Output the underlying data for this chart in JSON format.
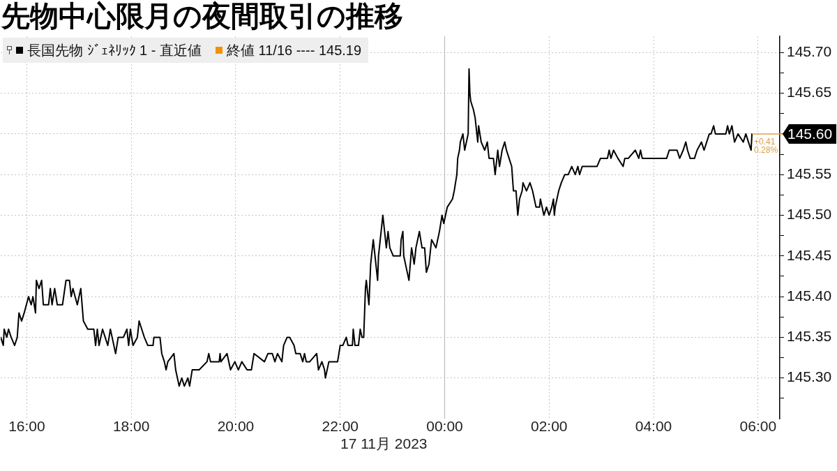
{
  "chart_data": {
    "type": "line",
    "title": "先物中心限月の夜間取引の推移",
    "x": [
      "2023-11-16T15:30",
      "2023-11-16T15:33",
      "2023-11-16T15:34",
      "2023-11-16T15:37",
      "2023-11-16T15:39",
      "2023-11-16T15:42",
      "2023-11-16T15:46",
      "2023-11-16T15:49",
      "2023-11-16T15:51",
      "2023-11-16T15:54",
      "2023-11-16T15:57",
      "2023-11-16T16:02",
      "2023-11-16T16:05",
      "2023-11-16T16:07",
      "2023-11-16T16:10",
      "2023-11-16T16:11",
      "2023-11-16T16:14",
      "2023-11-16T16:17",
      "2023-11-16T16:19",
      "2023-11-16T16:25",
      "2023-11-16T16:27",
      "2023-11-16T16:29",
      "2023-11-16T16:32",
      "2023-11-16T16:35",
      "2023-11-16T16:41",
      "2023-11-16T16:45",
      "2023-11-16T16:49",
      "2023-11-16T16:51",
      "2023-11-16T16:53",
      "2023-11-16T16:58",
      "2023-11-16T17:02",
      "2023-11-16T17:05",
      "2023-11-16T17:10",
      "2023-11-16T17:17",
      "2023-11-16T17:19",
      "2023-11-16T17:21",
      "2023-11-16T17:23",
      "2023-11-16T17:27",
      "2023-11-16T17:30",
      "2023-11-16T17:33",
      "2023-11-16T17:36",
      "2023-11-16T17:38",
      "2023-11-16T17:42",
      "2023-11-16T17:45",
      "2023-11-16T17:51",
      "2023-11-16T17:55",
      "2023-11-16T17:57",
      "2023-11-16T17:59",
      "2023-11-16T18:02",
      "2023-11-16T18:07",
      "2023-11-16T18:09",
      "2023-11-16T18:12",
      "2023-11-16T18:15",
      "2023-11-16T18:19",
      "2023-11-16T18:25",
      "2023-11-16T18:26",
      "2023-11-16T18:33",
      "2023-11-16T18:35",
      "2023-11-16T18:38",
      "2023-11-16T18:40",
      "2023-11-16T18:42",
      "2023-11-16T18:49",
      "2023-11-16T18:51",
      "2023-11-16T18:55",
      "2023-11-16T18:58",
      "2023-11-16T19:01",
      "2023-11-16T19:05",
      "2023-11-16T19:07",
      "2023-11-16T19:10",
      "2023-11-16T19:18",
      "2023-11-16T19:27",
      "2023-11-16T19:29",
      "2023-11-16T19:31",
      "2023-11-16T19:41",
      "2023-11-16T19:42",
      "2023-11-16T19:43",
      "2023-11-16T19:50",
      "2023-11-16T19:54",
      "2023-11-16T19:59",
      "2023-11-16T20:03",
      "2023-11-16T20:07",
      "2023-11-16T20:13",
      "2023-11-16T20:18",
      "2023-11-16T20:21",
      "2023-11-16T20:33",
      "2023-11-16T20:37",
      "2023-11-16T20:42",
      "2023-11-16T20:45",
      "2023-11-16T20:48",
      "2023-11-16T20:53",
      "2023-11-16T20:55",
      "2023-11-16T20:59",
      "2023-11-16T21:02",
      "2023-11-16T21:07",
      "2023-11-16T21:09",
      "2023-11-16T21:14",
      "2023-11-16T21:17",
      "2023-11-16T21:19",
      "2023-11-16T21:21",
      "2023-11-16T21:25",
      "2023-11-16T21:33",
      "2023-11-16T21:35",
      "2023-11-16T21:39",
      "2023-11-16T21:42",
      "2023-11-16T21:43",
      "2023-11-16T21:47",
      "2023-11-16T21:57",
      "2023-11-16T22:00",
      "2023-11-16T22:03",
      "2023-11-16T22:07",
      "2023-11-16T22:09",
      "2023-11-16T22:14",
      "2023-11-16T22:15",
      "2023-11-16T22:17",
      "2023-11-16T22:21",
      "2023-11-16T22:23",
      "2023-11-16T22:25",
      "2023-11-16T22:27",
      "2023-11-16T22:29",
      "2023-11-16T22:30",
      "2023-11-16T22:33",
      "2023-11-16T22:35",
      "2023-11-16T22:38",
      "2023-11-16T22:40",
      "2023-11-16T22:43",
      "2023-11-16T22:44",
      "2023-11-16T22:47",
      "2023-11-16T22:49",
      "2023-11-16T22:51",
      "2023-11-16T22:53",
      "2023-11-16T22:55",
      "2023-11-16T22:57",
      "2023-11-16T23:01",
      "2023-11-16T23:09",
      "2023-11-16T23:10",
      "2023-11-16T23:12",
      "2023-11-16T23:13",
      "2023-11-16T23:17",
      "2023-11-16T23:19",
      "2023-11-16T23:22",
      "2023-11-16T23:25",
      "2023-11-16T23:27",
      "2023-11-16T23:31",
      "2023-11-16T23:34",
      "2023-11-16T23:37",
      "2023-11-16T23:39",
      "2023-11-16T23:42",
      "2023-11-16T23:45",
      "2023-11-16T23:50",
      "2023-11-16T23:54",
      "2023-11-16T23:57",
      "2023-11-16T23:59",
      "2023-11-17T00:03",
      "2023-11-17T00:09",
      "2023-11-17T00:11",
      "2023-11-17T00:14",
      "2023-11-17T00:15",
      "2023-11-17T00:17",
      "2023-11-17T00:18",
      "2023-11-17T00:21",
      "2023-11-17T00:23",
      "2023-11-17T00:25",
      "2023-11-17T00:27",
      "2023-11-17T00:28",
      "2023-11-17T00:29",
      "2023-11-17T00:30",
      "2023-11-17T00:33",
      "2023-11-17T00:35",
      "2023-11-17T00:37",
      "2023-11-17T00:38",
      "2023-11-17T00:39",
      "2023-11-17T00:42",
      "2023-11-17T00:46",
      "2023-11-17T00:49",
      "2023-11-17T00:50",
      "2023-11-17T00:51",
      "2023-11-17T00:56",
      "2023-11-17T00:58",
      "2023-11-17T01:01",
      "2023-11-17T01:03",
      "2023-11-17T01:06",
      "2023-11-17T01:09",
      "2023-11-17T01:11",
      "2023-11-17T01:14",
      "2023-11-17T01:17",
      "2023-11-17T01:19",
      "2023-11-17T01:22",
      "2023-11-17T01:24",
      "2023-11-17T01:26",
      "2023-11-17T01:29",
      "2023-11-17T01:30",
      "2023-11-17T01:34",
      "2023-11-17T01:38",
      "2023-11-17T01:41",
      "2023-11-17T01:43",
      "2023-11-17T01:45",
      "2023-11-17T01:49",
      "2023-11-17T01:50",
      "2023-11-17T01:54",
      "2023-11-17T01:57",
      "2023-11-17T02:00",
      "2023-11-17T02:03",
      "2023-11-17T02:05",
      "2023-11-17T02:06",
      "2023-11-17T02:07",
      "2023-11-17T02:11",
      "2023-11-17T02:14",
      "2023-11-17T02:18",
      "2023-11-17T02:22",
      "2023-11-17T02:26",
      "2023-11-17T02:30",
      "2023-11-17T02:33",
      "2023-11-17T02:35",
      "2023-11-17T02:38",
      "2023-11-17T02:55",
      "2023-11-17T02:59",
      "2023-11-17T03:07",
      "2023-11-17T03:09",
      "2023-11-17T03:11",
      "2023-11-17T03:14",
      "2023-11-17T03:19",
      "2023-11-17T03:25",
      "2023-11-17T03:27",
      "2023-11-17T03:31",
      "2023-11-17T03:39",
      "2023-11-17T03:43",
      "2023-11-17T03:45",
      "2023-11-17T03:47",
      "2023-11-17T04:15",
      "2023-11-17T04:18",
      "2023-11-17T04:27",
      "2023-11-17T04:30",
      "2023-11-17T04:34",
      "2023-11-17T04:37",
      "2023-11-17T04:39",
      "2023-11-17T04:42",
      "2023-11-17T04:47",
      "2023-11-17T04:50",
      "2023-11-17T04:55",
      "2023-11-17T04:58",
      "2023-11-17T05:01",
      "2023-11-17T05:04",
      "2023-11-17T05:06",
      "2023-11-17T05:09",
      "2023-11-17T05:11",
      "2023-11-17T05:23",
      "2023-11-17T05:25",
      "2023-11-17T05:27",
      "2023-11-17T05:30",
      "2023-11-17T05:33",
      "2023-11-17T05:37",
      "2023-11-17T05:43",
      "2023-11-17T05:46",
      "2023-11-17T05:49",
      "2023-11-17T05:52",
      "2023-11-17T05:53"
    ],
    "series": [
      {
        "name": "長国先物 ｼﾞｪﾈﾘｯｸ 1 - 直近値",
        "color": "#000000",
        "values": [
          145.35,
          145.34,
          145.36,
          145.35,
          145.36,
          145.35,
          145.34,
          145.35,
          145.38,
          145.37,
          145.38,
          145.4,
          145.39,
          145.4,
          145.38,
          145.42,
          145.41,
          145.42,
          145.39,
          145.39,
          145.41,
          145.39,
          145.41,
          145.39,
          145.39,
          145.42,
          145.42,
          145.4,
          145.41,
          145.39,
          145.41,
          145.37,
          145.36,
          145.36,
          145.34,
          145.36,
          145.34,
          145.36,
          145.35,
          145.34,
          145.36,
          145.35,
          145.33,
          145.35,
          145.35,
          145.36,
          145.34,
          145.36,
          145.34,
          145.35,
          145.37,
          145.36,
          145.35,
          145.34,
          145.34,
          145.35,
          145.35,
          145.33,
          145.32,
          145.31,
          145.32,
          145.33,
          145.31,
          145.29,
          145.3,
          145.29,
          145.3,
          145.29,
          145.31,
          145.31,
          145.32,
          145.33,
          145.32,
          145.32,
          145.33,
          145.32,
          145.33,
          145.31,
          145.32,
          145.31,
          145.32,
          145.31,
          145.31,
          145.33,
          145.32,
          145.33,
          145.33,
          145.32,
          145.33,
          145.32,
          145.34,
          145.35,
          145.35,
          145.34,
          145.33,
          145.33,
          145.32,
          145.33,
          145.32,
          145.32,
          145.33,
          145.31,
          145.32,
          145.31,
          145.3,
          145.32,
          145.32,
          145.34,
          145.34,
          145.35,
          145.34,
          145.34,
          145.36,
          145.34,
          145.34,
          145.36,
          145.35,
          145.35,
          145.41,
          145.42,
          145.39,
          145.44,
          145.47,
          145.45,
          145.42,
          145.45,
          145.48,
          145.5,
          145.48,
          145.46,
          145.48,
          145.46,
          145.45,
          145.45,
          145.47,
          145.48,
          145.45,
          145.43,
          145.42,
          145.46,
          145.44,
          145.46,
          145.48,
          145.46,
          145.46,
          145.43,
          145.44,
          145.47,
          145.46,
          145.48,
          145.5,
          145.49,
          145.51,
          145.52,
          145.53,
          145.55,
          145.57,
          145.58,
          145.59,
          145.6,
          145.58,
          145.59,
          145.6,
          145.68,
          145.65,
          145.64,
          145.63,
          145.62,
          145.6,
          145.59,
          145.61,
          145.59,
          145.58,
          145.59,
          145.58,
          145.57,
          145.57,
          145.55,
          145.58,
          145.56,
          145.58,
          145.59,
          145.58,
          145.57,
          145.56,
          145.53,
          145.53,
          145.5,
          145.52,
          145.53,
          145.54,
          145.53,
          145.54,
          145.53,
          145.52,
          145.51,
          145.51,
          145.52,
          145.5,
          145.51,
          145.5,
          145.51,
          145.52,
          145.5,
          145.51,
          145.53,
          145.54,
          145.55,
          145.55,
          145.56,
          145.55,
          145.56,
          145.55,
          145.56,
          145.56,
          145.57,
          145.57,
          145.58,
          145.57,
          145.58,
          145.57,
          145.56,
          145.57,
          145.57,
          145.58,
          145.57,
          145.58,
          145.57,
          145.57,
          145.58,
          145.58,
          145.57,
          145.58,
          145.59,
          145.58,
          145.57,
          145.57,
          145.58,
          145.59,
          145.58,
          145.59,
          145.6,
          145.6,
          145.61,
          145.6,
          145.6,
          145.61,
          145.6,
          145.61,
          145.59,
          145.6,
          145.59,
          145.6,
          145.59,
          145.58,
          145.6
        ],
        "value_labels": [
          null,
          null,
          null,
          null,
          null,
          null,
          null,
          null,
          null,
          null,
          null,
          null,
          null,
          null,
          null,
          null,
          null,
          null,
          null,
          null,
          null,
          null,
          null,
          null,
          null,
          null,
          null,
          null,
          null,
          null,
          null,
          null,
          null,
          null,
          null,
          null,
          null,
          null,
          null,
          null,
          null,
          null,
          null,
          null,
          null,
          null,
          null,
          null,
          null,
          null,
          null,
          null,
          null,
          null,
          null,
          null,
          null,
          null,
          null,
          null,
          null,
          null,
          null,
          null,
          null,
          null,
          null,
          null,
          null,
          null,
          null,
          null,
          null,
          null,
          null,
          null,
          null,
          null,
          null,
          null,
          null,
          null,
          null,
          null,
          null,
          null,
          null,
          null,
          null,
          null,
          null,
          null,
          null,
          null,
          null,
          null,
          null,
          null,
          null,
          null,
          null,
          null,
          null,
          null,
          null,
          null,
          null,
          null,
          null,
          null,
          null,
          null,
          null,
          null,
          null,
          null,
          null,
          null,
          null,
          null,
          null,
          null,
          null,
          null,
          null,
          null,
          null,
          null,
          null,
          null,
          null,
          null,
          null,
          null,
          null,
          null,
          null,
          null,
          null,
          null,
          null,
          null,
          null,
          null,
          null,
          null,
          null,
          null,
          null,
          null,
          null,
          null,
          null,
          null,
          null,
          null,
          null,
          null,
          null,
          null,
          null,
          null,
          null,
          null,
          null,
          null,
          null,
          null,
          null,
          null,
          null,
          null,
          null,
          null,
          null,
          null,
          null,
          null,
          null,
          null,
          null,
          null,
          null,
          null,
          null,
          null,
          null,
          null,
          null,
          null,
          null,
          null,
          null,
          null,
          null,
          null,
          null,
          null,
          null,
          null,
          null,
          null,
          null,
          null,
          null,
          null,
          null,
          null,
          null,
          null,
          null,
          null,
          null,
          null,
          null,
          null,
          null,
          null,
          null,
          null,
          null,
          null,
          null,
          null,
          null,
          null,
          null,
          null,
          null,
          null,
          null,
          null,
          null,
          null,
          null,
          null,
          null,
          null,
          null,
          null,
          null,
          null,
          null,
          null,
          null,
          null,
          null,
          null,
          null,
          null,
          null,
          null,
          null,
          null,
          null,
          "145.60"
        ]
      }
    ],
    "xlim": [
      "2023-11-16T15:30",
      "2023-11-17T06:25"
    ],
    "xticks": [
      {
        "value": "2023-11-16T16:00",
        "label": "16:00"
      },
      {
        "value": "2023-11-16T18:00",
        "label": "18:00"
      },
      {
        "value": "2023-11-16T20:00",
        "label": "20:00"
      },
      {
        "value": "2023-11-16T22:00",
        "label": "22:00"
      },
      {
        "value": "2023-11-17T00:00",
        "label": "00:00"
      },
      {
        "value": "2023-11-17T02:00",
        "label": "02:00"
      },
      {
        "value": "2023-11-17T04:00",
        "label": "04:00"
      },
      {
        "value": "2023-11-17T06:00",
        "label": "06:00"
      }
    ],
    "ylim": [
      145.25,
      145.72
    ],
    "yticks": [
      {
        "value": 145.275,
        "label": null
      },
      {
        "value": 145.3,
        "label": "145.30"
      },
      {
        "value": 145.325,
        "label": null
      },
      145.35,
      {
        "value": 145.375,
        "label": null
      },
      {
        "value": 145.4,
        "label": "145.40"
      },
      {
        "value": 145.425,
        "label": null
      },
      145.45,
      {
        "value": 145.475,
        "label": null
      },
      {
        "value": 145.5,
        "label": "145.50"
      },
      {
        "value": 145.525,
        "label": null
      },
      145.55,
      {
        "value": 145.575,
        "label": null
      },
      {
        "value": 145.6,
        "label": null
      },
      {
        "value": 145.625,
        "label": null
      },
      145.65,
      {
        "value": 145.675,
        "label": null
      },
      {
        "value": 145.7,
        "label": "145.70"
      }
    ],
    "ref_lines": [
      {
        "axis": "x",
        "value": "2023-11-17T00:00",
        "label": "17 11月 2023",
        "color": "#b4b4b4"
      }
    ],
    "annotations": [
      "終値 11/16 ---- 145.19",
      {
        "text": "+0.41",
        "x": "2023-11-17T05:53",
        "y": 145.59
      },
      {
        "text": "0.28%",
        "x": "2023-11-17T05:53",
        "y": 145.58
      }
    ],
    "grid": true,
    "legend": "top left",
    "marker": "none",
    "line_style": "solid"
  }
}
